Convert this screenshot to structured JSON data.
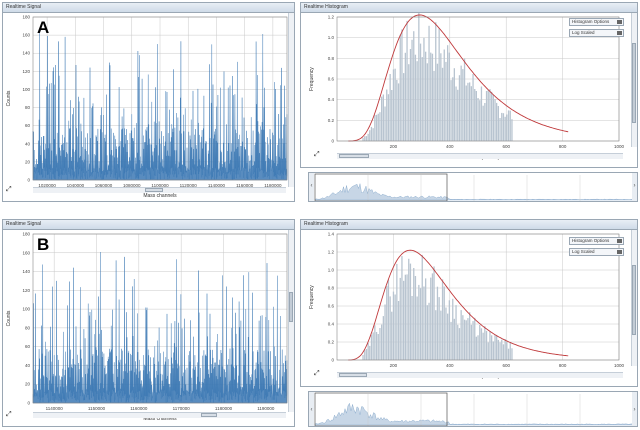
{
  "panels": {
    "A_signal": {
      "title": "Realtime Signal",
      "letter": "A",
      "xlabel": "Mass channels",
      "ylabel": "Counts",
      "xticks": [
        "1020000",
        "1040000",
        "1060000",
        "1080000",
        "1100000",
        "1120000",
        "1140000",
        "1160000",
        "1180000"
      ],
      "yticks": [
        "0",
        "20",
        "40",
        "60",
        "80",
        "100",
        "120",
        "140",
        "160",
        "180"
      ]
    },
    "A_hist": {
      "title": "Realtime Histogram",
      "xlabel": "Peak Area (counts)",
      "ylabel": "Frequency",
      "xticks": [
        "200",
        "400",
        "600",
        "800",
        "1000"
      ],
      "yticks": [
        "0",
        "0.2",
        "0.4",
        "0.6",
        "0.8",
        "1.0",
        "1.2"
      ],
      "options_label": "Histogram Options",
      "scale_label": "Log Scaled"
    },
    "B_signal": {
      "title": "Realtime Signal",
      "letter": "B",
      "xlabel": "Mass channels",
      "ylabel": "Counts",
      "xticks": [
        "1140000",
        "1150000",
        "1160000",
        "1170000",
        "1180000",
        "1190000"
      ],
      "yticks": [
        "0",
        "20",
        "40",
        "60",
        "80",
        "100",
        "120",
        "140",
        "160",
        "180"
      ]
    },
    "B_hist": {
      "title": "Realtime Histogram",
      "xlabel": "Peak Area (counts)",
      "ylabel": "Frequency",
      "xticks": [
        "200",
        "400",
        "600",
        "800",
        "1000"
      ],
      "yticks": [
        "0",
        "0.2",
        "0.4",
        "0.6",
        "0.8",
        "1.0",
        "1.2",
        "1.4"
      ],
      "options_label": "Histogram Options",
      "scale_label": "Log Scaled"
    }
  },
  "colors": {
    "signal": "#3c78b4",
    "hist_bar": "#b8c4d0",
    "fit": "#c0393b",
    "grid": "#c8c8c8"
  }
}
